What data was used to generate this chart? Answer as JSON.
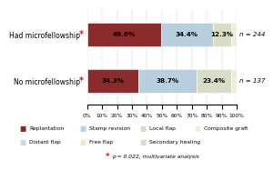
{
  "categories": [
    "Had microfellowship",
    "No microfellowship"
  ],
  "n_labels": [
    "n = 244",
    "n = 137"
  ],
  "segment_values": [
    [
      49.6,
      34.4,
      12.3,
      3.7
    ],
    [
      34.3,
      38.7,
      23.4,
      3.6
    ]
  ],
  "segment_colors": [
    [
      "#8B2B2B",
      "#b8cfe0",
      "#d6dfc6",
      "#f0c8b0"
    ],
    [
      "#8B2B2B",
      "#b8cfe0",
      "#d6dfc6",
      "#f0c8b0"
    ]
  ],
  "text_labels": [
    [
      "49.6%",
      "34.4%",
      "12.3%",
      ""
    ],
    [
      "34.3%",
      "38.7%",
      "23.4%",
      ""
    ]
  ],
  "xtick_labels": [
    "0%",
    "10%",
    "20%",
    "30%",
    "40%",
    "50%",
    "60%",
    "70%",
    "80%",
    "90%",
    "100%"
  ],
  "xticks": [
    0,
    10,
    20,
    30,
    40,
    50,
    60,
    70,
    80,
    90,
    100
  ],
  "legend_row1": [
    {
      "label": "Replantation",
      "color": "#8B2B2B"
    },
    {
      "label": "Stamp revision",
      "color": "#b8cfe0"
    },
    {
      "label": "Local flap",
      "color": "#d6dfc6"
    },
    {
      "label": "Composite graft",
      "color": "#f0f0d8"
    }
  ],
  "legend_row2": [
    {
      "label": "Distant flap",
      "color": "#c8dae8"
    },
    {
      "label": "Free flap",
      "color": "#f5e6c8"
    },
    {
      "label": "Secondary healing",
      "color": "#d6dfc6"
    }
  ],
  "footnote": "p = 0.022, multivariate analysis",
  "background_color": "#ffffff",
  "bar_height": 0.5
}
